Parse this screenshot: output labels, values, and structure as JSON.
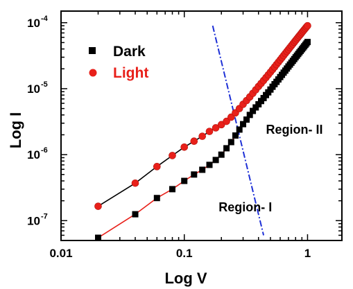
{
  "chart_data": {
    "type": "scatter",
    "xlabel": "Log V",
    "ylabel": "Log I",
    "x_scale": "log",
    "y_scale": "log",
    "xlim": [
      0.01,
      1.9
    ],
    "ylim": [
      5e-08,
      0.00015
    ],
    "x_ticks": [
      {
        "value": 0.01,
        "label": "0.01"
      },
      {
        "value": 0.1,
        "label": "0.1"
      },
      {
        "value": 1,
        "label": "1"
      }
    ],
    "y_ticks": [
      {
        "value": 1e-07,
        "base": "10",
        "exp": "-7"
      },
      {
        "value": 1e-06,
        "base": "10",
        "exp": "-6"
      },
      {
        "value": 1e-05,
        "base": "10",
        "exp": "-5"
      },
      {
        "value": 0.0001,
        "base": "10",
        "exp": "-4"
      }
    ],
    "legend_position": "top-left",
    "series": [
      {
        "name": "Dark",
        "marker": "square",
        "color": "#000000",
        "fit_color": "#e8201a",
        "x": [
          0.02,
          0.04,
          0.06,
          0.08,
          0.1,
          0.12,
          0.14,
          0.16,
          0.18,
          0.2,
          0.22,
          0.24,
          0.26,
          0.28,
          0.3,
          0.32,
          0.34,
          0.36,
          0.38,
          0.4,
          0.42,
          0.44,
          0.46,
          0.48,
          0.5,
          0.52,
          0.54,
          0.56,
          0.58,
          0.6,
          0.62,
          0.64,
          0.66,
          0.68,
          0.7,
          0.72,
          0.74,
          0.76,
          0.78,
          0.8,
          0.82,
          0.84,
          0.86,
          0.88,
          0.9,
          0.92,
          0.94,
          0.96,
          0.98,
          1.0
        ],
        "y": [
          5.5e-08,
          1.25e-07,
          2.2e-07,
          3e-07,
          4e-07,
          5e-07,
          5.9e-07,
          7e-07,
          8.3e-07,
          1e-06,
          1.25e-06,
          1.55e-06,
          1.95e-06,
          2.4e-06,
          2.9e-06,
          3.4e-06,
          4e-06,
          4.6e-06,
          5.2e-06,
          5.8e-06,
          6.5e-06,
          7.2e-06,
          8e-06,
          8.8e-06,
          9.7e-06,
          1.07e-05,
          1.17e-05,
          1.27e-05,
          1.38e-05,
          1.5e-05,
          1.62e-05,
          1.75e-05,
          1.88e-05,
          2.02e-05,
          2.17e-05,
          2.32e-05,
          2.48e-05,
          2.64e-05,
          2.81e-05,
          2.99e-05,
          3.17e-05,
          3.36e-05,
          3.55e-05,
          3.75e-05,
          3.96e-05,
          4.17e-05,
          4.39e-05,
          4.62e-05,
          4.85e-05,
          5.1e-05
        ]
      },
      {
        "name": "Light",
        "marker": "circle",
        "color": "#e8201a",
        "fit_color": "#000000",
        "x": [
          0.02,
          0.04,
          0.06,
          0.08,
          0.1,
          0.12,
          0.14,
          0.16,
          0.18,
          0.2,
          0.22,
          0.24,
          0.26,
          0.28,
          0.3,
          0.32,
          0.34,
          0.36,
          0.38,
          0.4,
          0.42,
          0.44,
          0.46,
          0.48,
          0.5,
          0.52,
          0.54,
          0.56,
          0.58,
          0.6,
          0.62,
          0.64,
          0.66,
          0.68,
          0.7,
          0.72,
          0.74,
          0.76,
          0.78,
          0.8,
          0.82,
          0.84,
          0.86,
          0.88,
          0.9,
          0.92,
          0.94,
          0.96,
          0.98,
          1.0
        ],
        "y": [
          1.65e-07,
          3.7e-07,
          6.6e-07,
          9.7e-07,
          1.3e-06,
          1.6e-06,
          1.9e-06,
          2.25e-06,
          2.55e-06,
          2.85e-06,
          3.2e-06,
          3.7e-06,
          4.3e-06,
          5e-06,
          5.8e-06,
          6.6e-06,
          7.5e-06,
          8.5e-06,
          9.6e-06,
          1.08e-05,
          1.2e-05,
          1.33e-05,
          1.47e-05,
          1.62e-05,
          1.78e-05,
          1.95e-05,
          2.13e-05,
          2.32e-05,
          2.52e-05,
          2.73e-05,
          2.95e-05,
          3.18e-05,
          3.42e-05,
          3.67e-05,
          3.93e-05,
          4.2e-05,
          4.48e-05,
          4.77e-05,
          5.07e-05,
          5.38e-05,
          5.7e-05,
          6.03e-05,
          6.37e-05,
          6.72e-05,
          7.08e-05,
          7.45e-05,
          7.83e-05,
          8.22e-05,
          8.62e-05,
          9e-05
        ]
      }
    ],
    "divider": {
      "color": "#1d2fd6",
      "from": [
        0.17,
        9e-05
      ],
      "to": [
        0.44,
        6e-08
      ]
    },
    "annotations": [
      {
        "text": "Region- I",
        "x": 0.19,
        "y": 1.6e-07
      },
      {
        "text": "Region- II",
        "x": 0.46,
        "y": 2.4e-06
      }
    ]
  }
}
